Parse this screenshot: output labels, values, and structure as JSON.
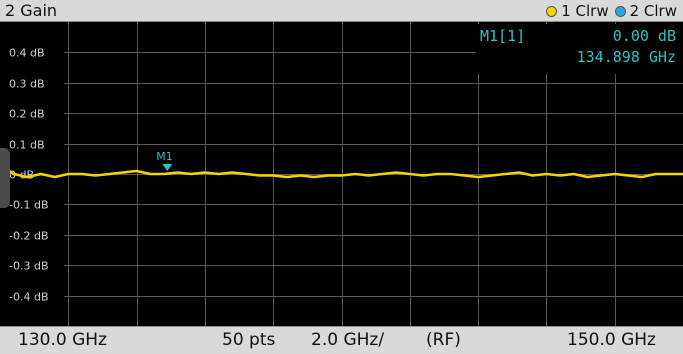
{
  "window": {
    "title": "2 Gain"
  },
  "legend": {
    "items": [
      {
        "label": "1 Clrw",
        "color": "#f5d400"
      },
      {
        "label": "2 Clrw",
        "color": "#29a8e0"
      }
    ]
  },
  "marker_readout": {
    "name": "M1[1]",
    "value": "0.00 dB",
    "frequency": "134.898 GHz"
  },
  "marker": {
    "label": "M1",
    "color": "#29c4c0"
  },
  "footer": {
    "start": "130.0 GHz",
    "points": "50 pts",
    "span_per_div": "2.0 GHz/",
    "mode": "(RF)",
    "stop": "150.0 GHz"
  },
  "chart_data": {
    "type": "line",
    "ylim": [
      -0.5,
      0.5
    ],
    "yticks": [
      0.4,
      0.3,
      0.2,
      0.1,
      0.0,
      -0.1,
      -0.2,
      -0.3,
      -0.4
    ],
    "ytick_labels": [
      "0.4 dB",
      "0.3 dB",
      "0.2 dB",
      "0.1 dB",
      "0 dB",
      "-0.1 dB",
      "-0.2 dB",
      "-0.3 dB",
      "-0.4 dB"
    ],
    "xlim": [
      130.0,
      150.0
    ],
    "grid": true,
    "series": [
      {
        "name": "1 Clrw",
        "color": "#f5d400",
        "x": [
          130.0,
          130.4,
          130.8,
          131.2,
          131.6,
          132.0,
          132.4,
          132.8,
          133.2,
          133.6,
          134.0,
          134.4,
          134.8,
          135.2,
          135.6,
          136.0,
          136.4,
          136.8,
          137.2,
          137.6,
          138.0,
          138.4,
          138.8,
          139.2,
          139.6,
          140.0,
          140.4,
          140.8,
          141.2,
          141.6,
          142.0,
          142.4,
          142.8,
          143.2,
          143.6,
          144.0,
          144.4,
          144.8,
          145.2,
          145.6,
          146.0,
          146.4,
          146.8,
          147.2,
          147.6,
          148.0,
          148.4,
          148.8,
          149.2,
          150.0
        ],
        "y": [
          0.03,
          0.0,
          -0.01,
          0.0,
          -0.01,
          0.0,
          0.0,
          -0.005,
          0.0,
          0.005,
          0.01,
          0.0,
          0.0,
          0.005,
          0.0,
          0.005,
          0.0,
          0.005,
          0.0,
          -0.005,
          -0.005,
          -0.01,
          -0.005,
          -0.01,
          -0.005,
          -0.005,
          0.0,
          -0.005,
          0.0,
          0.005,
          0.0,
          -0.005,
          0.0,
          0.0,
          -0.005,
          -0.01,
          -0.005,
          0.0,
          0.005,
          -0.005,
          0.0,
          -0.005,
          0.0,
          -0.01,
          -0.005,
          0.0,
          -0.005,
          -0.01,
          0.0,
          0.0
        ]
      }
    ],
    "markers": [
      {
        "label": "M1",
        "x": 134.898,
        "y": 0.0
      }
    ]
  }
}
